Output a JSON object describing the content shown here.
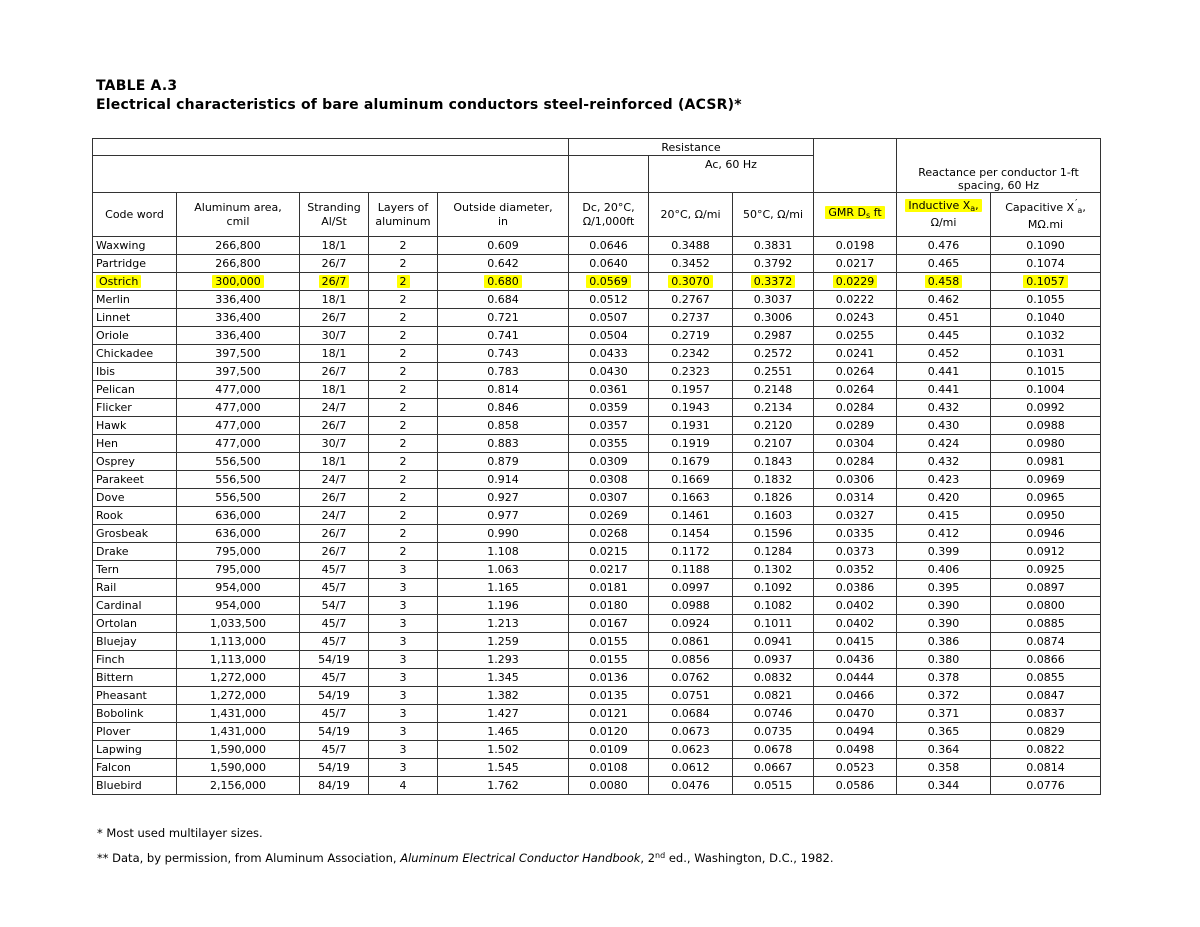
{
  "title": {
    "label": "TABLE A.3",
    "subtitle": "Electrical characteristics of bare aluminum conductors steel-reinforced (ACSR)*"
  },
  "colors": {
    "highlight": "#ffff00",
    "text": "#000000",
    "border": "#333333",
    "background": "#ffffff"
  },
  "table": {
    "group_headers": {
      "resistance": "Resistance",
      "ac_60hz": "Ac, 60 Hz",
      "reactance_line1": "Reactance per conductor 1-ft",
      "reactance_line2": "spacing, 60 Hz"
    },
    "columns": {
      "code_word": "Code word",
      "aluminum_area_l1": "Aluminum area,",
      "aluminum_area_l2": "cmil",
      "stranding_l1": "Stranding",
      "stranding_l2": "Al/St",
      "layers_l1": "Layers of",
      "layers_l2": "aluminum",
      "outside_diameter_l1": "Outside diameter,",
      "outside_diameter_l2": "in",
      "dc_l1": "Dc, 20°C,",
      "dc_l2": "Ω/1,000ft",
      "ac20": "20°C, Ω/mi",
      "ac50": "50°C, Ω/mi",
      "gmr_pre": "GMR D",
      "gmr_sub": "s",
      "gmr_post": " ft",
      "inductive_pre": "Inductive X",
      "inductive_sub": "a",
      "inductive_post": ",",
      "inductive_l2": "Ω/mi",
      "capacitive_pre": "Capacitive X",
      "capacitive_prime": "′",
      "capacitive_sub": "a",
      "capacitive_post": ",",
      "capacitive_l2": "MΩ.mi"
    },
    "highlighted_row_index": 2,
    "highlighted_row_code_word": "Ostrich",
    "rows": [
      [
        "Waxwing",
        "266,800",
        "18/1",
        "2",
        "0.609",
        "0.0646",
        "0.3488",
        "0.3831",
        "0.0198",
        "0.476",
        "0.1090"
      ],
      [
        "Partridge",
        "266,800",
        "26/7",
        "2",
        "0.642",
        "0.0640",
        "0.3452",
        "0.3792",
        "0.0217",
        "0.465",
        "0.1074"
      ],
      [
        "Ostrich",
        "300,000",
        "26/7",
        "2",
        "0.680",
        "0.0569",
        "0.3070",
        "0.3372",
        "0.0229",
        "0.458",
        "0.1057"
      ],
      [
        "Merlin",
        "336,400",
        "18/1",
        "2",
        "0.684",
        "0.0512",
        "0.2767",
        "0.3037",
        "0.0222",
        "0.462",
        "0.1055"
      ],
      [
        "Linnet",
        "336,400",
        "26/7",
        "2",
        "0.721",
        "0.0507",
        "0.2737",
        "0.3006",
        "0.0243",
        "0.451",
        "0.1040"
      ],
      [
        "Oriole",
        "336,400",
        "30/7",
        "2",
        "0.741",
        "0.0504",
        "0.2719",
        "0.2987",
        "0.0255",
        "0.445",
        "0.1032"
      ],
      [
        "Chickadee",
        "397,500",
        "18/1",
        "2",
        "0.743",
        "0.0433",
        "0.2342",
        "0.2572",
        "0.0241",
        "0.452",
        "0.1031"
      ],
      [
        "Ibis",
        "397,500",
        "26/7",
        "2",
        "0.783",
        "0.0430",
        "0.2323",
        "0.2551",
        "0.0264",
        "0.441",
        "0.1015"
      ],
      [
        "Pelican",
        "477,000",
        "18/1",
        "2",
        "0.814",
        "0.0361",
        "0.1957",
        "0.2148",
        "0.0264",
        "0.441",
        "0.1004"
      ],
      [
        "Flicker",
        "477,000",
        "24/7",
        "2",
        "0.846",
        "0.0359",
        "0.1943",
        "0.2134",
        "0.0284",
        "0.432",
        "0.0992"
      ],
      [
        "Hawk",
        "477,000",
        "26/7",
        "2",
        "0.858",
        "0.0357",
        "0.1931",
        "0.2120",
        "0.0289",
        "0.430",
        "0.0988"
      ],
      [
        "Hen",
        "477,000",
        "30/7",
        "2",
        "0.883",
        "0.0355",
        "0.1919",
        "0.2107",
        "0.0304",
        "0.424",
        "0.0980"
      ],
      [
        "Osprey",
        "556,500",
        "18/1",
        "2",
        "0.879",
        "0.0309",
        "0.1679",
        "0.1843",
        "0.0284",
        "0.432",
        "0.0981"
      ],
      [
        "Parakeet",
        "556,500",
        "24/7",
        "2",
        "0.914",
        "0.0308",
        "0.1669",
        "0.1832",
        "0.0306",
        "0.423",
        "0.0969"
      ],
      [
        "Dove",
        "556,500",
        "26/7",
        "2",
        "0.927",
        "0.0307",
        "0.1663",
        "0.1826",
        "0.0314",
        "0.420",
        "0.0965"
      ],
      [
        "Rook",
        "636,000",
        "24/7",
        "2",
        "0.977",
        "0.0269",
        "0.1461",
        "0.1603",
        "0.0327",
        "0.415",
        "0.0950"
      ],
      [
        "Grosbeak",
        "636,000",
        "26/7",
        "2",
        "0.990",
        "0.0268",
        "0.1454",
        "0.1596",
        "0.0335",
        "0.412",
        "0.0946"
      ],
      [
        "Drake",
        "795,000",
        "26/7",
        "2",
        "1.108",
        "0.0215",
        "0.1172",
        "0.1284",
        "0.0373",
        "0.399",
        "0.0912"
      ],
      [
        "Tern",
        "795,000",
        "45/7",
        "3",
        "1.063",
        "0.0217",
        "0.1188",
        "0.1302",
        "0.0352",
        "0.406",
        "0.0925"
      ],
      [
        "Rail",
        "954,000",
        "45/7",
        "3",
        "1.165",
        "0.0181",
        "0.0997",
        "0.1092",
        "0.0386",
        "0.395",
        "0.0897"
      ],
      [
        "Cardinal",
        "954,000",
        "54/7",
        "3",
        "1.196",
        "0.0180",
        "0.0988",
        "0.1082",
        "0.0402",
        "0.390",
        "0.0800"
      ],
      [
        "Ortolan",
        "1,033,500",
        "45/7",
        "3",
        "1.213",
        "0.0167",
        "0.0924",
        "0.1011",
        "0.0402",
        "0.390",
        "0.0885"
      ],
      [
        "Bluejay",
        "1,113,000",
        "45/7",
        "3",
        "1.259",
        "0.0155",
        "0.0861",
        "0.0941",
        "0.0415",
        "0.386",
        "0.0874"
      ],
      [
        "Finch",
        "1,113,000",
        "54/19",
        "3",
        "1.293",
        "0.0155",
        "0.0856",
        "0.0937",
        "0.0436",
        "0.380",
        "0.0866"
      ],
      [
        "Bittern",
        "1,272,000",
        "45/7",
        "3",
        "1.345",
        "0.0136",
        "0.0762",
        "0.0832",
        "0.0444",
        "0.378",
        "0.0855"
      ],
      [
        "Pheasant",
        "1,272,000",
        "54/19",
        "3",
        "1.382",
        "0.0135",
        "0.0751",
        "0.0821",
        "0.0466",
        "0.372",
        "0.0847"
      ],
      [
        "Bobolink",
        "1,431,000",
        "45/7",
        "3",
        "1.427",
        "0.0121",
        "0.0684",
        "0.0746",
        "0.0470",
        "0.371",
        "0.0837"
      ],
      [
        "Plover",
        "1,431,000",
        "54/19",
        "3",
        "1.465",
        "0.0120",
        "0.0673",
        "0.0735",
        "0.0494",
        "0.365",
        "0.0829"
      ],
      [
        "Lapwing",
        "1,590,000",
        "45/7",
        "3",
        "1.502",
        "0.0109",
        "0.0623",
        "0.0678",
        "0.0498",
        "0.364",
        "0.0822"
      ],
      [
        "Falcon",
        "1,590,000",
        "54/19",
        "3",
        "1.545",
        "0.0108",
        "0.0612",
        "0.0667",
        "0.0523",
        "0.358",
        "0.0814"
      ],
      [
        "Bluebird",
        "2,156,000",
        "84/19",
        "4",
        "1.762",
        "0.0080",
        "0.0476",
        "0.0515",
        "0.0586",
        "0.344",
        "0.0776"
      ]
    ]
  },
  "footnotes": {
    "line1": "* Most used multilayer sizes.",
    "line2_pre": "** Data, by permission, from Aluminum Association, ",
    "line2_italic": "Aluminum Electrical Conductor Handbook",
    "line2_mid": ", 2",
    "line2_sup": "nd",
    "line2_post": " ed., Washington, D.C., 1982."
  }
}
